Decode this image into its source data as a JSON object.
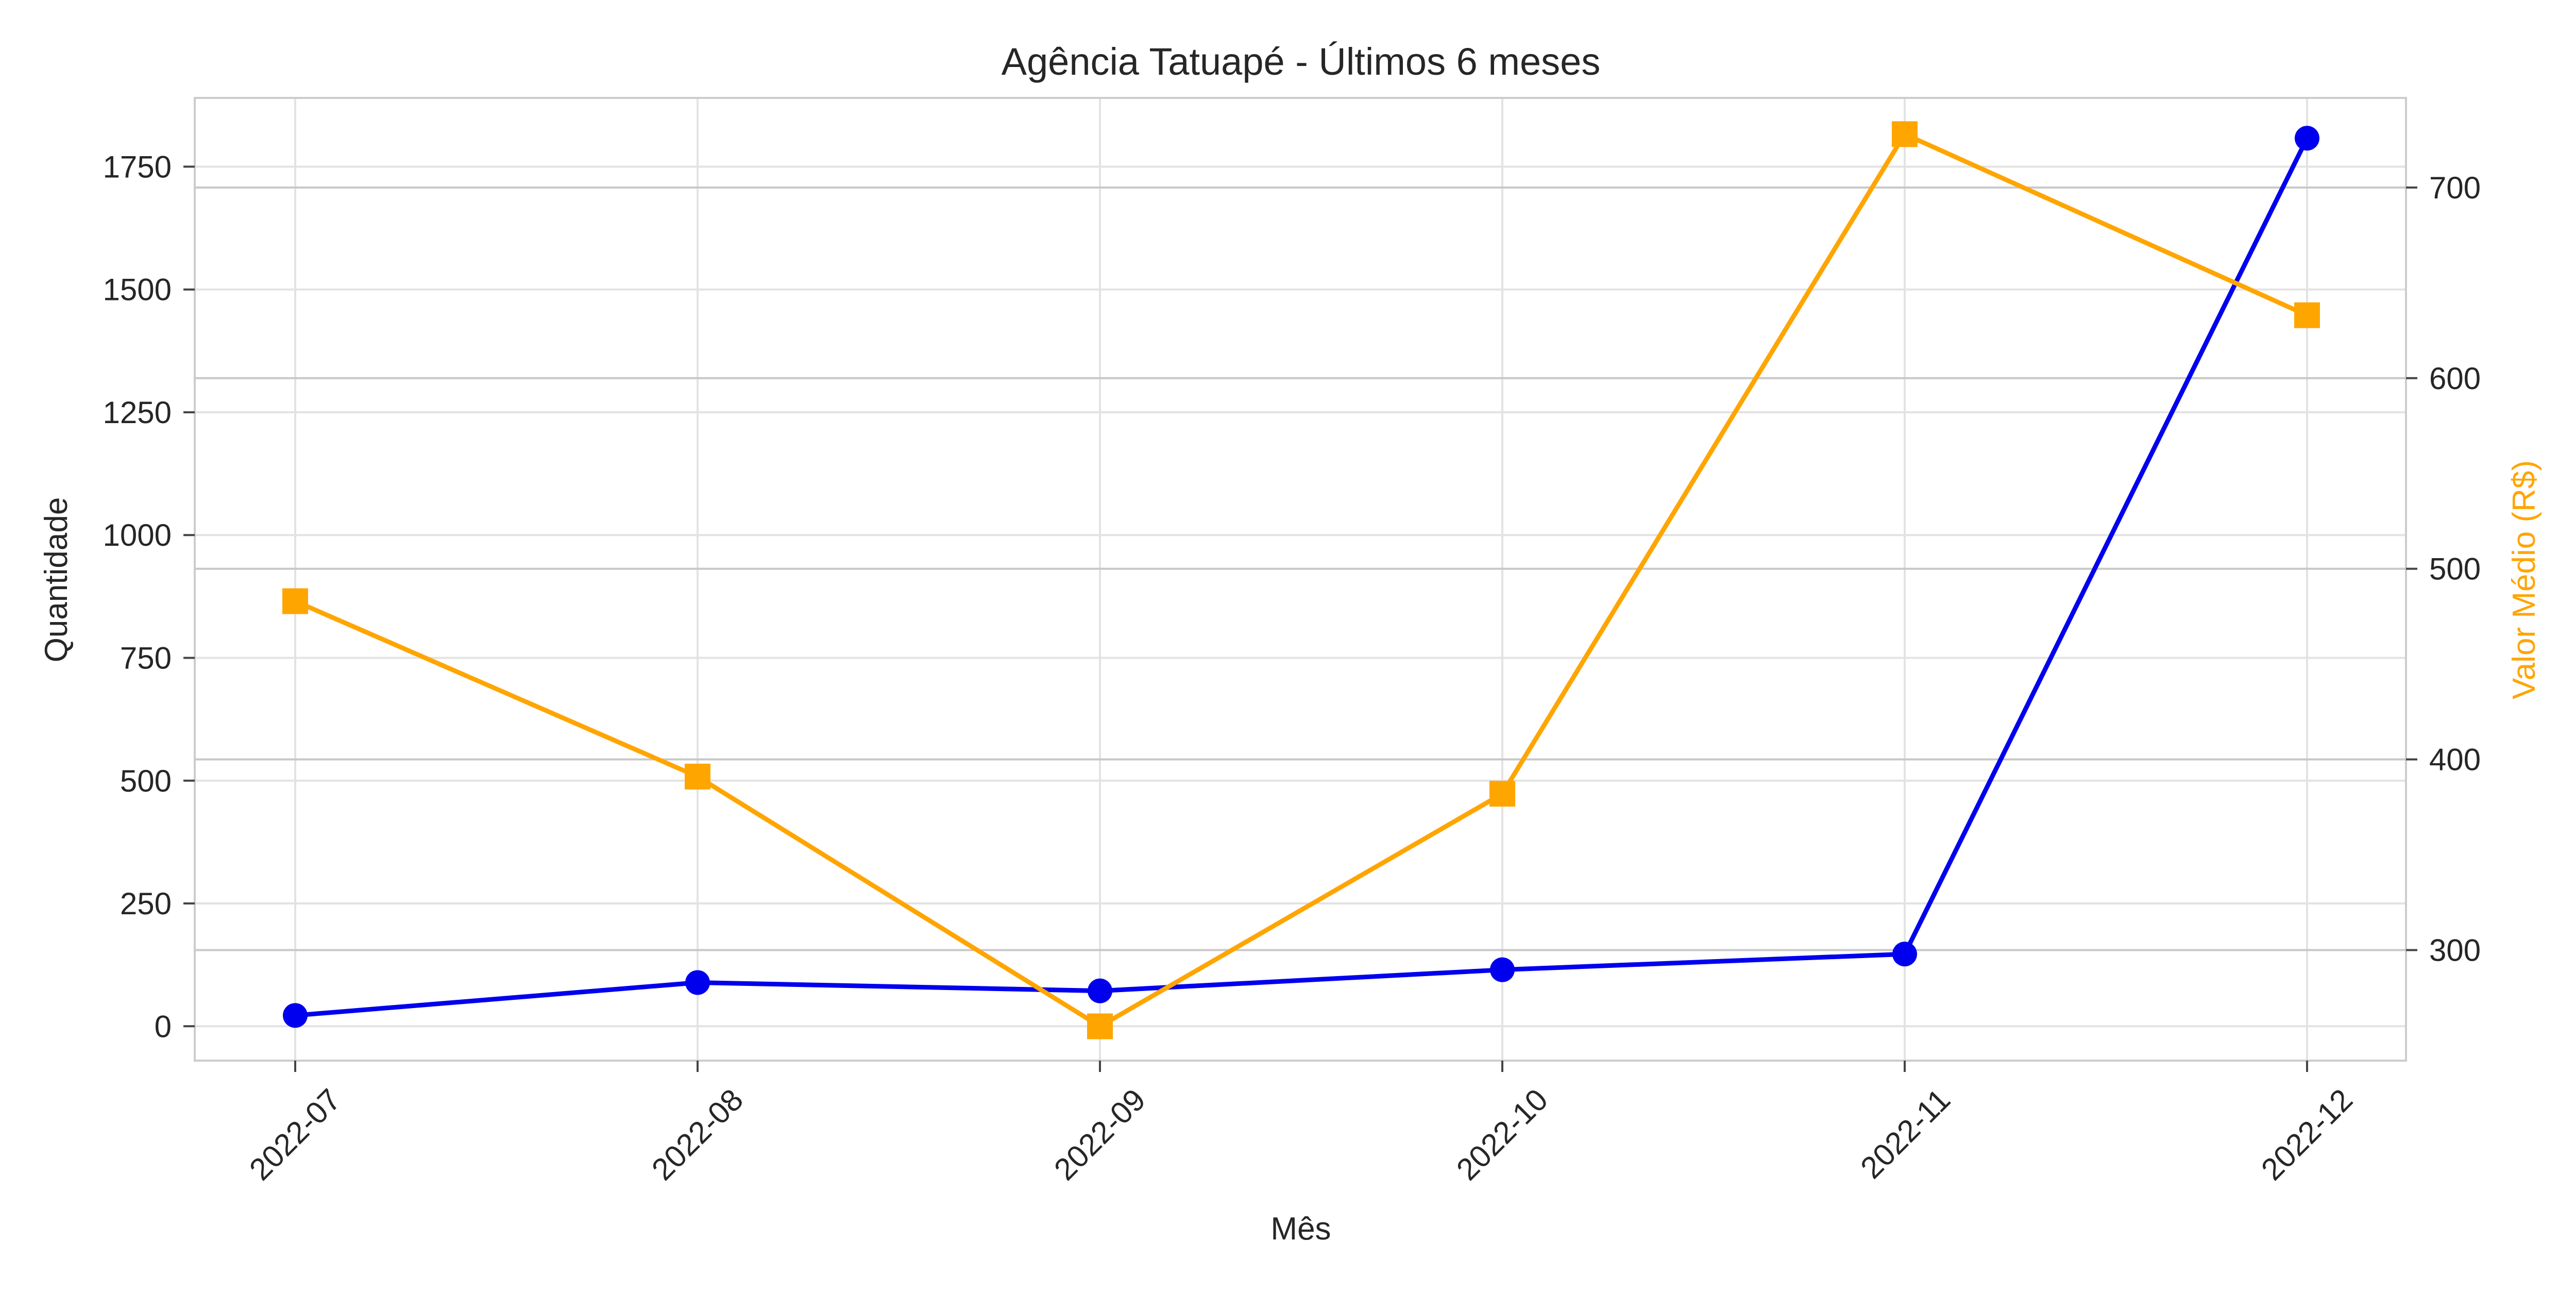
{
  "chart_data": {
    "type": "line",
    "title": "Agência Tatuapé - Últimos 6 meses",
    "xlabel": "Mês",
    "ylabel": "Quantidade",
    "y2label": "Valor Médio (R$)",
    "categories": [
      "2022-07",
      "2022-08",
      "2022-09",
      "2022-10",
      "2022-11",
      "2022-12"
    ],
    "ylim": [
      -70,
      1890
    ],
    "y2lim": [
      242,
      747
    ],
    "yticks": [
      0,
      250,
      500,
      750,
      1000,
      1250,
      1500,
      1750
    ],
    "y2ticks": [
      300,
      400,
      500,
      600,
      700
    ],
    "grid": true,
    "series": [
      {
        "axis": "left",
        "color": "#0000ee",
        "marker": "circle",
        "values": [
          22,
          89,
          72,
          115,
          147,
          1808
        ]
      },
      {
        "axis": "right",
        "color": "#ffa500",
        "marker": "square",
        "values": [
          483,
          391,
          260,
          382,
          728,
          633
        ]
      }
    ]
  }
}
